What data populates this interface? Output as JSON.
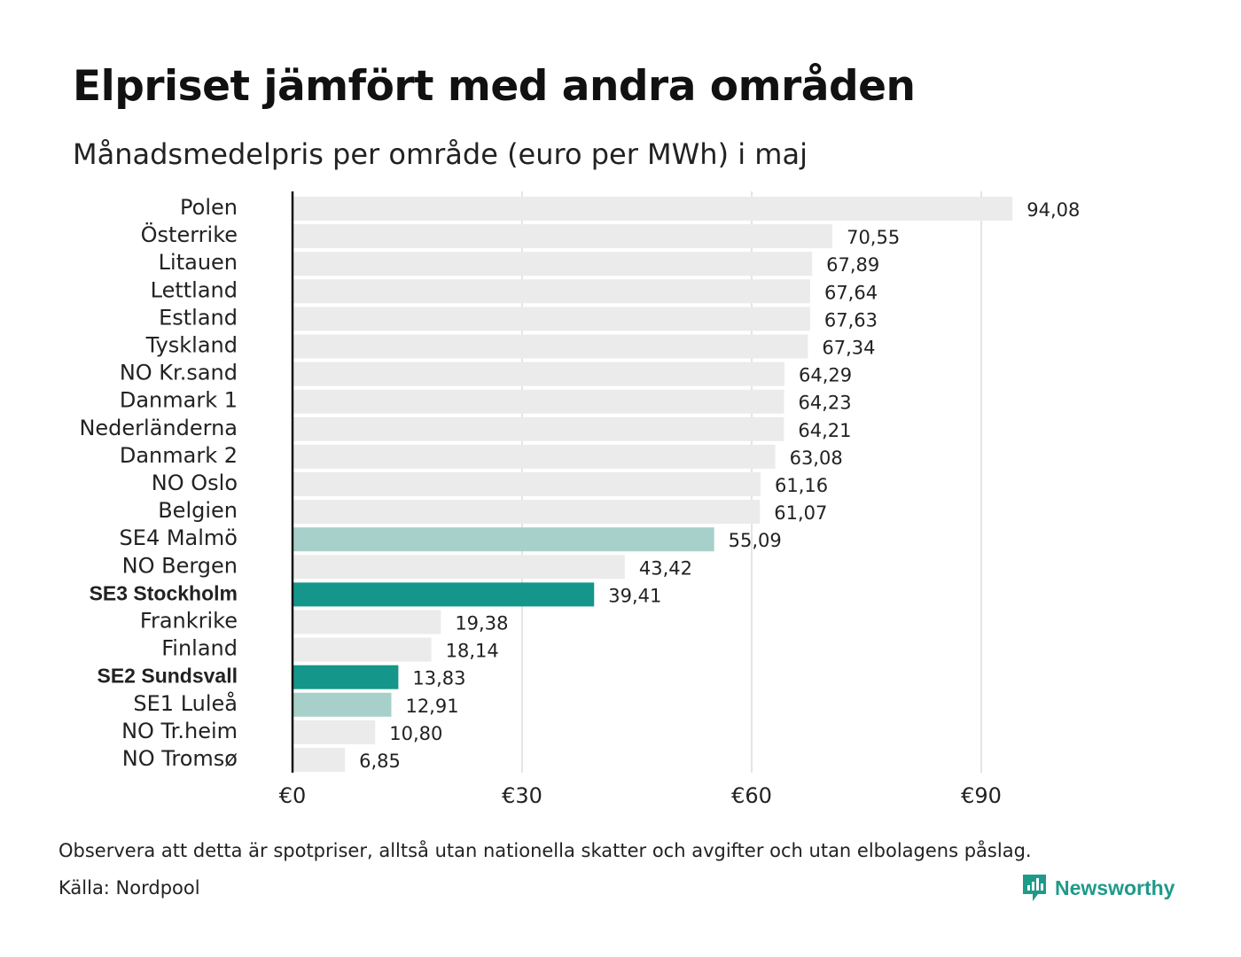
{
  "header": {
    "title": "Elpriset jämfört med andra områden",
    "subtitle": "Månadsmedelpris per område (euro per MWh) i maj"
  },
  "footer": {
    "note": "Observera att detta är spotpriser, alltså utan nationella skatter och avgifter och utan elbolagens påslag.",
    "source": "Källa: Nordpool",
    "logo_text": "Newsworthy",
    "logo_icon": "newsworthy-chart-icon"
  },
  "colors": {
    "default_bar": "#ebebeb",
    "light_highlight": "#a6d0c9",
    "dark_highlight": "#15968a",
    "axis": "#111111",
    "grid": "#c8c8d4",
    "brand": "#1e9a8a"
  },
  "chart_data": {
    "type": "bar",
    "orientation": "horizontal",
    "categories": [
      "Polen",
      "Österrike",
      "Litauen",
      "Lettland",
      "Estland",
      "Tyskland",
      "NO Kr.sand",
      "Danmark  1",
      "Nederländerna",
      "Danmark  2",
      "NO Oslo",
      "Belgien",
      "SE4  Malmö",
      "NO Bergen",
      "SE3 Stockholm",
      "Frankrike",
      "Finland",
      "SE2 Sundsvall",
      "SE1  Luleå",
      "NO Tr.heim",
      "NO Tromsø"
    ],
    "values": [
      94.08,
      70.55,
      67.89,
      67.64,
      67.63,
      67.34,
      64.29,
      64.23,
      64.21,
      63.08,
      61.16,
      61.07,
      55.09,
      43.42,
      39.41,
      19.38,
      18.14,
      13.83,
      12.91,
      10.8,
      6.85
    ],
    "value_labels": [
      "94,08",
      "70,55",
      "67,89",
      "67,64",
      "67,63",
      "67,34",
      "64,29",
      "64,23",
      "64,21",
      "63,08",
      "61,16",
      "61,07",
      "55,09",
      "43,42",
      "39,41",
      "19,38",
      "18,14",
      "13,83",
      "12,91",
      "10,80",
      "6,85"
    ],
    "highlight": [
      "none",
      "none",
      "none",
      "none",
      "none",
      "none",
      "none",
      "none",
      "none",
      "none",
      "none",
      "none",
      "light",
      "none",
      "dark",
      "none",
      "none",
      "dark",
      "light",
      "none",
      "none"
    ],
    "bold_labels": [
      "SE3 Stockholm",
      "SE2 Sundsvall"
    ],
    "x_ticks": [
      0,
      30,
      60,
      90
    ],
    "x_tick_labels": [
      "€0",
      "€30",
      "€60",
      "€90"
    ],
    "xlim": [
      0,
      110
    ],
    "grid": true,
    "title": "Elpriset jämfört med andra områden",
    "subtitle": "Månadsmedelpris per område (euro per MWh) i maj",
    "xlabel": "",
    "ylabel": ""
  }
}
